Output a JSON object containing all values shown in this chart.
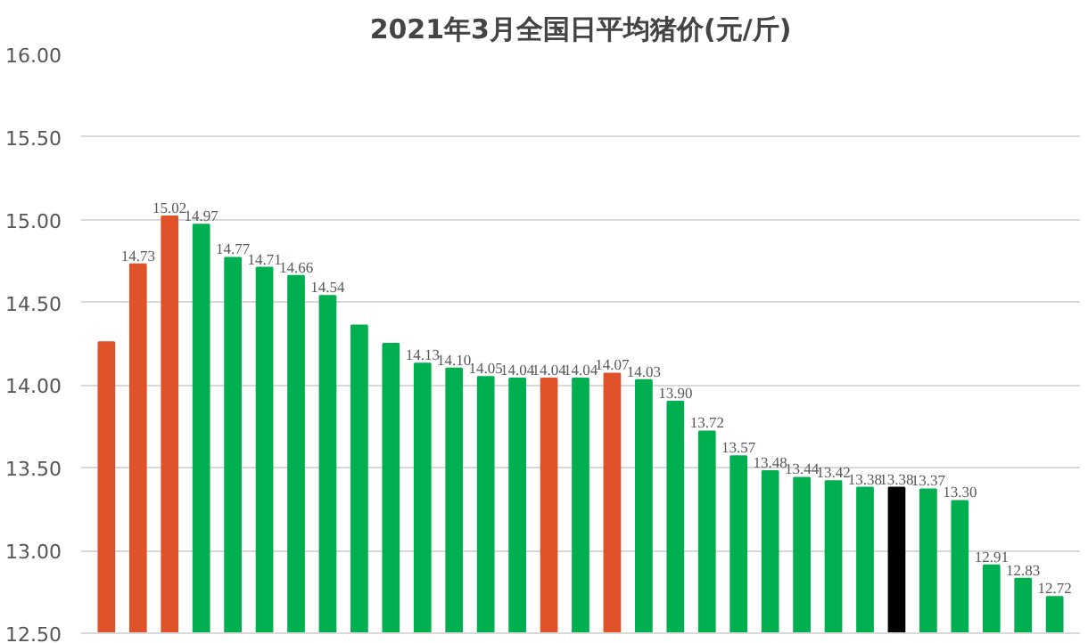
{
  "chart_data": {
    "type": "bar",
    "title": "2021年3月全国日平均猪价(元/斤)",
    "categories": [
      null,
      null,
      null,
      null,
      null,
      null,
      null,
      null,
      null,
      null,
      null,
      null,
      null,
      null,
      null,
      null,
      null,
      null,
      null,
      null,
      null,
      null,
      null,
      null,
      null,
      null,
      null,
      null,
      null,
      null,
      null
    ],
    "values": [
      14.26,
      14.73,
      15.02,
      14.97,
      14.77,
      14.71,
      14.66,
      14.54,
      14.36,
      14.25,
      14.13,
      14.1,
      14.05,
      14.04,
      14.04,
      14.04,
      14.07,
      14.03,
      13.9,
      13.72,
      13.57,
      13.48,
      13.44,
      13.42,
      13.38,
      13.38,
      13.37,
      13.3,
      12.91,
      12.83,
      12.72
    ],
    "colors": [
      "#e0522a",
      "#e0522a",
      "#e0522a",
      "#00b050",
      "#00b050",
      "#00b050",
      "#00b050",
      "#00b050",
      "#00b050",
      "#00b050",
      "#00b050",
      "#00b050",
      "#00b050",
      "#00b050",
      "#e0522a",
      "#00b050",
      "#e0522a",
      "#00b050",
      "#00b050",
      "#00b050",
      "#00b050",
      "#00b050",
      "#00b050",
      "#00b050",
      "#00b050",
      "#000000",
      "#00b050",
      "#00b050",
      "#00b050",
      "#00b050",
      "#00b050"
    ],
    "value_labels": [
      null,
      "14.73",
      "15.02",
      "14.97",
      "14.77",
      "14.71",
      "14.66",
      "14.54",
      null,
      null,
      "14.13",
      "14.10",
      "14.05",
      "14.04",
      "14.04",
      "14.04",
      "14.07",
      "14.03",
      "13.90",
      "13.72",
      "13.57",
      "13.48",
      "13.44",
      "13.42",
      "13.38",
      "13.38",
      "13.37",
      "13.30",
      "12.91",
      "12.83",
      "12.72"
    ],
    "ylim": [
      12.5,
      16
    ],
    "yticks": [
      {
        "value": 12.5,
        "label": "12.50"
      },
      {
        "value": 13,
        "label": "13.00"
      },
      {
        "value": 13.5,
        "label": "13.50"
      },
      {
        "value": 14,
        "label": "14.00"
      },
      {
        "value": 14.5,
        "label": "14.50"
      },
      {
        "value": 15,
        "label": "15.00"
      },
      {
        "value": 15.5,
        "label": "15.50"
      },
      {
        "value": 16,
        "label": "16.00"
      }
    ],
    "grid": "y",
    "tick_labels": "y"
  }
}
